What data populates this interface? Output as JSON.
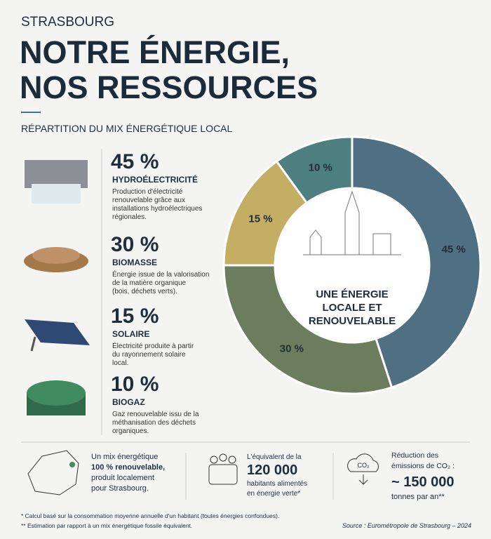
{
  "header": {
    "city": "STRASBOURG",
    "title_lines": [
      "NOTRE ÉNERGIE,",
      "NOS RESSOURCES"
    ],
    "subtitle": "RÉPARTITION DU MIX ÉNERGÉTIQUE LOCAL"
  },
  "chart_data": {
    "type": "donut",
    "categories": [
      "HYDROÉLECTRICITÉ",
      "BIOMASSE",
      "SOLAIRE",
      "BIOGAZ"
    ],
    "values": [
      45,
      30,
      15,
      10
    ],
    "value_labels": [
      "45 %",
      "30 %",
      "15 %",
      "10 %"
    ],
    "colors": [
      "#4f6f82",
      "#6b7d5c",
      "#c4ae63",
      "#4e7f80"
    ],
    "center_label": [
      "UNE ÉNERGIE",
      "LOCALE ET",
      "RENOUVELABLE"
    ]
  },
  "descriptions": [
    [
      "Production d'électricité",
      "renouvelable grâce aux",
      "installations hydroélectriques",
      "régionales."
    ],
    [
      "Énergie issue de la valorisation",
      "de la matière organique",
      "(bois, déchets verts)."
    ],
    [
      "Électricité produite à partir",
      "du rayonnement solaire",
      "local."
    ],
    [
      "Gaz renouvelable issu de la",
      "méthanisation des déchets",
      "organiques."
    ]
  ],
  "stats": [
    {
      "lines": [
        "Un mix énergétique",
        "100 % renouvelable,",
        "produit localement",
        "pour Strasbourg."
      ]
    },
    {
      "lines": [
        "L'équivalent de la",
        "120 000",
        "habitants alimentés",
        "en énergie verte*"
      ]
    },
    {
      "icon_label": "CO₂",
      "lines": [
        "Réduction des",
        "émissions de CO₂ :",
        "~ 150 000",
        "tonnes par an**"
      ]
    }
  ],
  "notes": [
    "* Calcul basé sur la consommation moyenne annuelle d'un habitant (toutes énergies confondues).",
    "** Estimation par rapport à un mix énergétique fossile équivalent."
  ],
  "source": "Source : Eurométropole de Strasbourg – 2024"
}
